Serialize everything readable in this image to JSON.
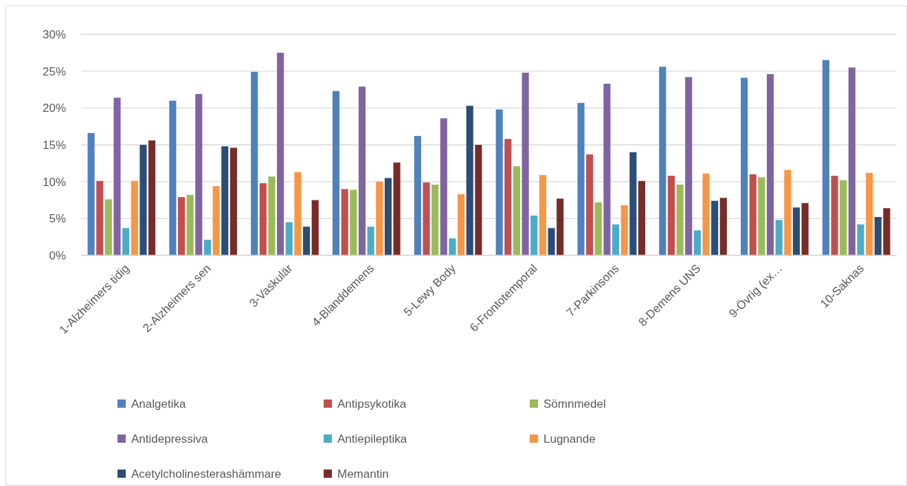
{
  "chart_data": {
    "type": "bar",
    "categories": [
      "1-Alzheimers tidig",
      "2-Alzheimers sen",
      "3-Vaskulär",
      "4-Blanddemens",
      "5-Lewy Body",
      "6-Frontotemporal",
      "7-Parkinsons",
      "8-Demens UNS",
      "9-Övrig (ex…",
      "10-Saknas"
    ],
    "series": [
      {
        "name": "Analgetika",
        "color": "#4f81bd",
        "values": [
          16.6,
          21.0,
          24.9,
          22.3,
          16.2,
          19.8,
          20.7,
          25.6,
          24.1,
          26.5
        ]
      },
      {
        "name": "Antipsykotika",
        "color": "#c0504d",
        "values": [
          10.1,
          7.9,
          9.8,
          9.0,
          9.9,
          15.8,
          13.7,
          10.8,
          11.0,
          10.8
        ]
      },
      {
        "name": "Sömnmedel",
        "color": "#9bbb59",
        "values": [
          7.6,
          8.2,
          10.7,
          8.9,
          9.6,
          12.1,
          7.2,
          9.6,
          10.6,
          10.2
        ]
      },
      {
        "name": "Antidepressiva",
        "color": "#8064a2",
        "values": [
          21.4,
          21.9,
          27.5,
          22.9,
          18.6,
          24.8,
          23.3,
          24.2,
          24.6,
          25.5
        ]
      },
      {
        "name": "Antiepileptika",
        "color": "#4bacc6",
        "values": [
          3.7,
          2.1,
          4.5,
          3.9,
          2.3,
          5.4,
          4.2,
          3.4,
          4.8,
          4.2
        ]
      },
      {
        "name": "Lugnande",
        "color": "#f79646",
        "values": [
          10.1,
          9.4,
          11.3,
          10.0,
          8.3,
          10.9,
          6.8,
          11.1,
          11.6,
          11.2
        ]
      },
      {
        "name": "Acetylcholinesterashämmare",
        "color": "#2c4d75",
        "values": [
          15.0,
          14.8,
          3.9,
          10.5,
          20.3,
          3.7,
          14.0,
          7.4,
          6.5,
          5.2
        ]
      },
      {
        "name": "Memantin",
        "color": "#772c2a",
        "values": [
          15.6,
          14.6,
          7.5,
          12.6,
          15.0,
          7.7,
          10.1,
          7.8,
          7.1,
          6.4
        ]
      }
    ],
    "ylim": [
      0,
      30
    ],
    "yticks": [
      {
        "value": 0,
        "label": "0%"
      },
      {
        "value": 5,
        "label": "5%"
      },
      {
        "value": 10,
        "label": "10%"
      },
      {
        "value": 15,
        "label": "15%"
      },
      {
        "value": 20,
        "label": "20%"
      },
      {
        "value": 25,
        "label": "25%"
      },
      {
        "value": 30,
        "label": "30%"
      }
    ],
    "grid": "y",
    "legend": "bottom"
  }
}
